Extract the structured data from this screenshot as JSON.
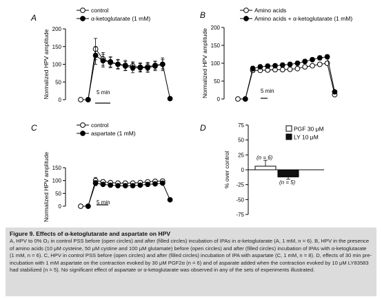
{
  "chart_data": [
    {
      "panel": "A",
      "type": "line",
      "ylabel": "Normalized HPV amplitude",
      "ylim": [
        0,
        200
      ],
      "yticks": [
        0,
        50,
        100,
        150,
        200
      ],
      "scalebar": "5 min",
      "legend": [
        "control",
        "α-ketoglutarate (1 mM)"
      ],
      "series": [
        {
          "name": "control",
          "marker": "open",
          "values": [
            0,
            0,
            143,
            115,
            105,
            100,
            97,
            95,
            92,
            93,
            97,
            100
          ],
          "errors": [
            0,
            0,
            30,
            18,
            15,
            14,
            14,
            12,
            12,
            12,
            12,
            13
          ]
        },
        {
          "name": "α-ketoglutarate (1 mM)",
          "marker": "filled",
          "values": [
            null,
            0,
            125,
            110,
            107,
            100,
            95,
            90,
            90,
            90,
            95,
            100,
            3
          ],
          "errors": [
            0,
            0,
            25,
            18,
            14,
            12,
            13,
            14,
            12,
            13,
            13,
            18,
            0
          ]
        }
      ]
    },
    {
      "panel": "B",
      "type": "line",
      "ylabel": "Normalized HPV amplitude",
      "ylim": [
        0,
        200
      ],
      "yticks": [
        0,
        50,
        100,
        150,
        200
      ],
      "scalebar": "5 min",
      "legend": [
        "Amino acids",
        "Amino acids + α-ketoglutarate (1 mM)"
      ],
      "series": [
        {
          "name": "Amino acids",
          "marker": "open",
          "values": [
            0,
            0,
            80,
            80,
            81,
            82,
            82,
            83,
            85,
            90,
            93,
            97,
            100,
            12
          ],
          "errors": [
            0,
            0,
            6,
            5,
            5,
            5,
            5,
            5,
            5,
            5,
            5,
            5,
            5,
            3
          ]
        },
        {
          "name": "Amino acids + α-ketoglutarate (1 mM)",
          "marker": "filled",
          "values": [
            null,
            0,
            85,
            90,
            92,
            93,
            95,
            97,
            100,
            105,
            110,
            115,
            118,
            20
          ],
          "errors": [
            0,
            0,
            7,
            6,
            6,
            6,
            6,
            6,
            6,
            6,
            6,
            6,
            6,
            3
          ]
        }
      ]
    },
    {
      "panel": "C",
      "type": "line",
      "ylabel": "Normalized HPV amplitude",
      "ylim": [
        0,
        150
      ],
      "yticks": [
        0,
        50,
        100,
        150
      ],
      "scalebar": "5 min",
      "legend": [
        "control",
        "aspartate (1 mM)"
      ],
      "series": [
        {
          "name": "control",
          "marker": "open",
          "values": [
            0,
            0,
            100,
            95,
            92,
            90,
            90,
            90,
            92,
            95,
            97,
            98
          ],
          "errors": [
            0,
            0,
            12,
            8,
            6,
            5,
            5,
            5,
            5,
            5,
            5,
            5
          ]
        },
        {
          "name": "aspartate (1 mM)",
          "marker": "filled",
          "values": [
            null,
            0,
            90,
            85,
            82,
            80,
            80,
            80,
            82,
            85,
            87,
            90,
            25
          ],
          "errors": [
            0,
            0,
            10,
            7,
            6,
            5,
            5,
            5,
            5,
            5,
            5,
            6,
            0
          ]
        }
      ]
    },
    {
      "panel": "D",
      "type": "bar",
      "ylabel": "% over control",
      "ylim": [
        -75,
        75
      ],
      "yticks": [
        75,
        50,
        25,
        0,
        -25,
        -50,
        -75
      ],
      "categories": [
        "PGF 30 μM",
        "LY 10 μM"
      ],
      "values": [
        6,
        -12
      ],
      "errors": [
        10,
        4
      ],
      "n_labels": [
        "(n = 6)",
        "(n = 5)"
      ],
      "legend": [
        "PGF 30 μM",
        "LY 10 μM"
      ]
    }
  ],
  "panel_letters": [
    "A",
    "B",
    "C",
    "D"
  ],
  "caption": {
    "title": "Figure 9.  Effects of α-ketoglutarate and aspartate on HPV",
    "text": "A, HPV to 0% O₂ in control PSS before (open circles) and after (filled circles) incubation of IPAs in α-ketoglutarate (A, 1 mM, n = 6). B, HPV in the presence of amino acids (10 μM cysteine, 50 μM cystine and 100 μM glutamate) before (open circles) and after (filled circles) incubation of IPAs with α-ketoglutarate (1 mM, n = 6). C, HPV in control PSS before (open circles) and after (filled circles) incubation of IPA with aspartate (C, 1 mM, n = 8). D, effects of 30 min pre-incubation with 1 mM aspartate on the contraction evoked by 30 μM PGF2α (n = 6) and of asparate added when the contraction evoked by 10 μM LY83583 had stabilized (n = 5). No significant effect of aspartate or α-ketoglutarate was observed in any of the sets of experiments illustrated."
  }
}
